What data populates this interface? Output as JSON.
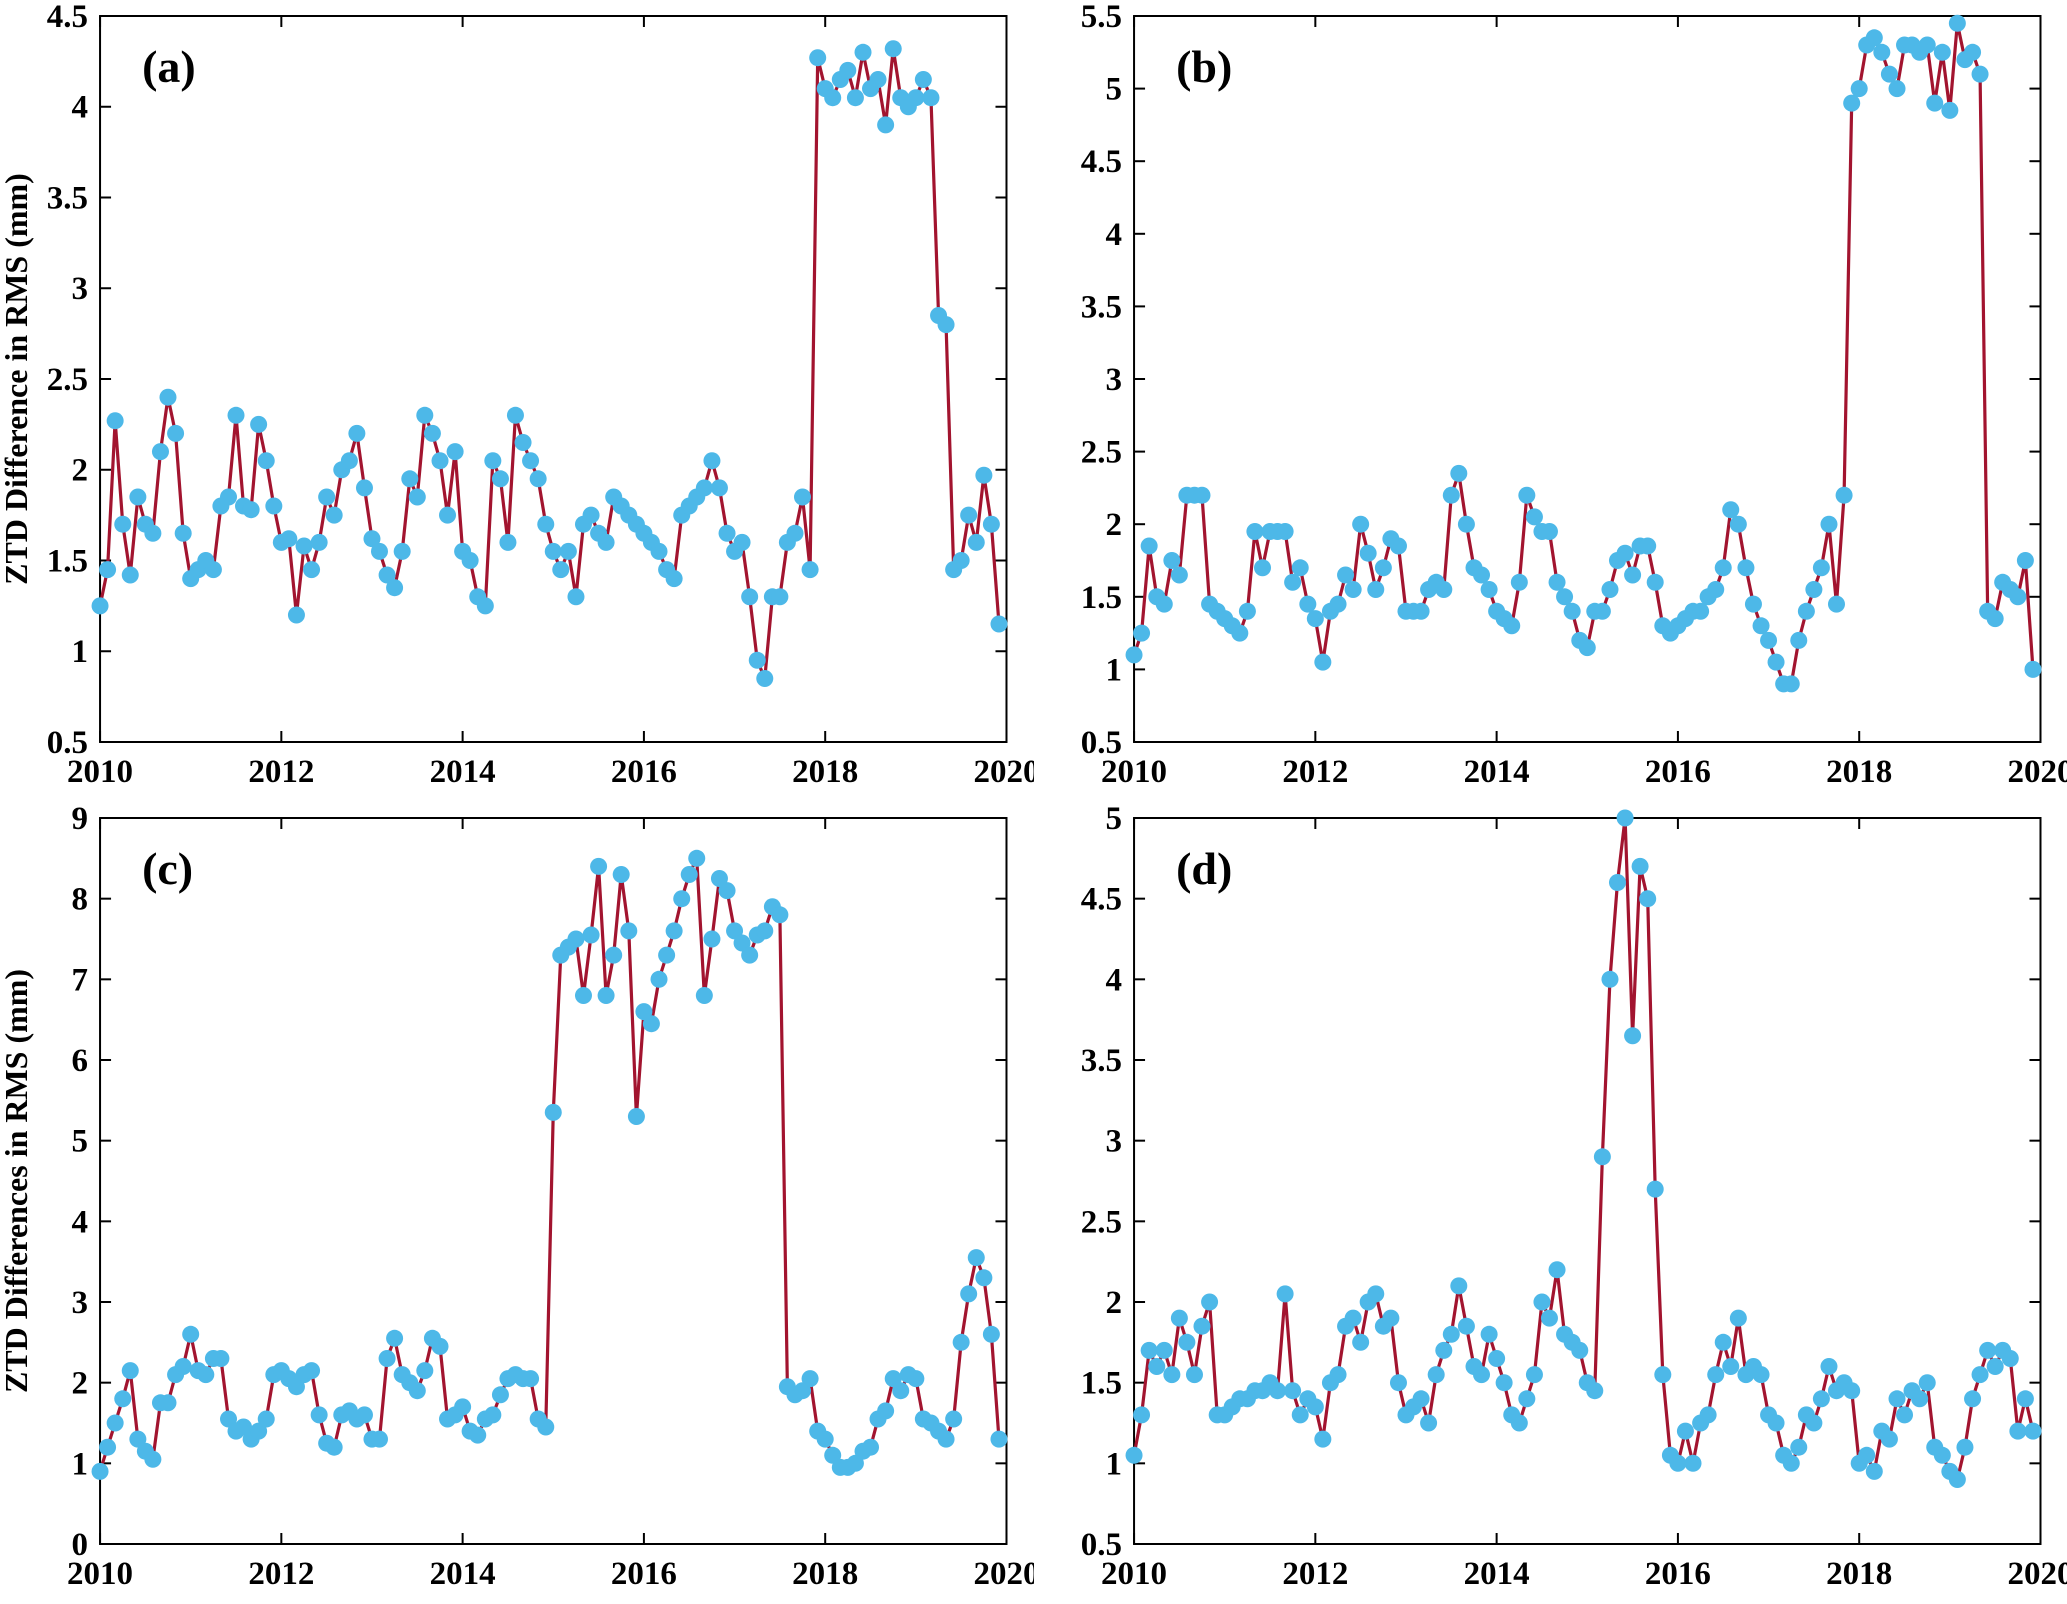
{
  "figure": {
    "background": "#ffffff",
    "line_color": "#A2142F",
    "marker_color": "#4DB8E8",
    "axis_color": "#000000",
    "grid": false,
    "legend": "none"
  },
  "chart_data": [
    {
      "type": "line",
      "panel_label": "(a)",
      "title": "",
      "xlabel": "",
      "ylabel": "ZTD Difference in RMS (mm)",
      "xlim": [
        2010,
        2020
      ],
      "ylim": [
        0.5,
        4.5
      ],
      "xticks": [
        2010,
        2012,
        2014,
        2016,
        2018,
        2020
      ],
      "yticks": [
        0.5,
        1,
        1.5,
        2,
        2.5,
        3,
        3.5,
        4,
        4.5
      ],
      "x_start": 2010,
      "x_interval": "monthly",
      "series_name": "ZTD RMS difference",
      "values": [
        1.25,
        1.45,
        2.27,
        1.7,
        1.42,
        1.85,
        1.7,
        1.65,
        2.1,
        2.4,
        2.2,
        1.65,
        1.4,
        1.45,
        1.5,
        1.45,
        1.8,
        1.85,
        2.3,
        1.8,
        1.78,
        2.25,
        2.05,
        1.8,
        1.6,
        1.62,
        1.2,
        1.58,
        1.45,
        1.6,
        1.85,
        1.75,
        2.0,
        2.05,
        2.2,
        1.9,
        1.62,
        1.55,
        1.42,
        1.35,
        1.55,
        1.95,
        1.85,
        2.3,
        2.2,
        2.05,
        1.75,
        2.1,
        1.55,
        1.5,
        1.3,
        1.25,
        2.05,
        1.95,
        1.6,
        2.3,
        2.15,
        2.05,
        1.95,
        1.7,
        1.55,
        1.45,
        1.55,
        1.3,
        1.7,
        1.75,
        1.65,
        1.6,
        1.85,
        1.8,
        1.75,
        1.7,
        1.65,
        1.6,
        1.55,
        1.45,
        1.4,
        1.75,
        1.8,
        1.85,
        1.9,
        2.05,
        1.9,
        1.65,
        1.55,
        1.6,
        1.3,
        0.95,
        0.85,
        1.3,
        1.3,
        1.6,
        1.65,
        1.85,
        1.45,
        4.27,
        4.1,
        4.05,
        4.15,
        4.2,
        4.05,
        4.3,
        4.1,
        4.15,
        3.9,
        4.32,
        4.05,
        4.0,
        4.05,
        4.15,
        4.05,
        2.85,
        2.8,
        1.45,
        1.5,
        1.75,
        1.6,
        1.97,
        1.7,
        1.15
      ]
    },
    {
      "type": "line",
      "panel_label": "(b)",
      "title": "",
      "xlabel": "",
      "ylabel": "",
      "xlim": [
        2010,
        2020
      ],
      "ylim": [
        0.5,
        5.5
      ],
      "xticks": [
        2010,
        2012,
        2014,
        2016,
        2018,
        2020
      ],
      "yticks": [
        0.5,
        1,
        1.5,
        2,
        2.5,
        3,
        3.5,
        4,
        4.5,
        5,
        5.5
      ],
      "x_start": 2010,
      "x_interval": "monthly",
      "series_name": "ZTD RMS difference",
      "values": [
        1.1,
        1.25,
        1.85,
        1.5,
        1.45,
        1.75,
        1.65,
        2.2,
        2.2,
        2.2,
        1.45,
        1.4,
        1.35,
        1.3,
        1.25,
        1.4,
        1.95,
        1.7,
        1.95,
        1.95,
        1.95,
        1.6,
        1.7,
        1.45,
        1.35,
        1.05,
        1.4,
        1.45,
        1.65,
        1.55,
        2.0,
        1.8,
        1.55,
        1.7,
        1.9,
        1.85,
        1.4,
        1.4,
        1.4,
        1.55,
        1.6,
        1.55,
        2.2,
        2.35,
        2.0,
        1.7,
        1.65,
        1.55,
        1.4,
        1.35,
        1.3,
        1.6,
        2.2,
        2.05,
        1.95,
        1.95,
        1.6,
        1.5,
        1.4,
        1.2,
        1.15,
        1.4,
        1.4,
        1.55,
        1.75,
        1.8,
        1.65,
        1.85,
        1.85,
        1.6,
        1.3,
        1.25,
        1.3,
        1.35,
        1.4,
        1.4,
        1.5,
        1.55,
        1.7,
        2.1,
        2.0,
        1.7,
        1.45,
        1.3,
        1.2,
        1.05,
        0.9,
        0.9,
        1.2,
        1.4,
        1.55,
        1.7,
        2.0,
        1.45,
        2.2,
        4.9,
        5.0,
        5.3,
        5.35,
        5.25,
        5.1,
        5.0,
        5.3,
        5.3,
        5.25,
        5.3,
        4.9,
        5.25,
        4.85,
        5.45,
        5.2,
        5.25,
        5.1,
        1.4,
        1.35,
        1.6,
        1.55,
        1.5,
        1.75,
        1.0
      ]
    },
    {
      "type": "line",
      "panel_label": "(c)",
      "title": "",
      "xlabel": "",
      "ylabel": "ZTD Differences in RMS (mm)",
      "xlim": [
        2010,
        2020
      ],
      "ylim": [
        0,
        9
      ],
      "xticks": [
        2010,
        2012,
        2014,
        2016,
        2018,
        2020
      ],
      "yticks": [
        0,
        1,
        2,
        3,
        4,
        5,
        6,
        7,
        8,
        9
      ],
      "x_start": 2010,
      "x_interval": "monthly",
      "series_name": "ZTD RMS difference",
      "values": [
        0.9,
        1.2,
        1.5,
        1.8,
        2.15,
        1.3,
        1.15,
        1.05,
        1.75,
        1.75,
        2.1,
        2.2,
        2.6,
        2.15,
        2.1,
        2.3,
        2.3,
        1.55,
        1.4,
        1.45,
        1.3,
        1.4,
        1.55,
        2.1,
        2.15,
        2.05,
        1.95,
        2.1,
        2.15,
        1.6,
        1.25,
        1.2,
        1.6,
        1.65,
        1.55,
        1.6,
        1.3,
        1.3,
        2.3,
        2.55,
        2.1,
        2.0,
        1.9,
        2.15,
        2.55,
        2.45,
        1.55,
        1.6,
        1.7,
        1.4,
        1.35,
        1.55,
        1.6,
        1.85,
        2.05,
        2.1,
        2.05,
        2.05,
        1.55,
        1.45,
        5.35,
        7.3,
        7.4,
        7.5,
        6.8,
        7.55,
        8.4,
        6.8,
        7.3,
        8.3,
        7.6,
        5.3,
        6.6,
        6.45,
        7.0,
        7.3,
        7.6,
        8.0,
        8.3,
        8.5,
        6.8,
        7.5,
        8.25,
        8.1,
        7.6,
        7.45,
        7.3,
        7.55,
        7.6,
        7.9,
        7.8,
        1.95,
        1.85,
        1.9,
        2.05,
        1.4,
        1.3,
        1.1,
        0.95,
        0.95,
        1.0,
        1.15,
        1.2,
        1.55,
        1.65,
        2.05,
        1.9,
        2.1,
        2.05,
        1.55,
        1.5,
        1.4,
        1.3,
        1.55,
        2.5,
        3.1,
        3.55,
        3.3,
        2.6,
        1.3
      ]
    },
    {
      "type": "line",
      "panel_label": "(d)",
      "title": "",
      "xlabel": "",
      "ylabel": "",
      "xlim": [
        2010,
        2020
      ],
      "ylim": [
        0.5,
        5
      ],
      "xticks": [
        2010,
        2012,
        2014,
        2016,
        2018,
        2020
      ],
      "yticks": [
        0.5,
        1,
        1.5,
        2,
        2.5,
        3,
        3.5,
        4,
        4.5,
        5
      ],
      "x_start": 2010,
      "x_interval": "monthly",
      "series_name": "ZTD RMS difference",
      "values": [
        1.05,
        1.3,
        1.7,
        1.6,
        1.7,
        1.55,
        1.9,
        1.75,
        1.55,
        1.85,
        2.0,
        1.3,
        1.3,
        1.35,
        1.4,
        1.4,
        1.45,
        1.45,
        1.5,
        1.45,
        2.05,
        1.45,
        1.3,
        1.4,
        1.35,
        1.15,
        1.5,
        1.55,
        1.85,
        1.9,
        1.75,
        2.0,
        2.05,
        1.85,
        1.9,
        1.5,
        1.3,
        1.35,
        1.4,
        1.25,
        1.55,
        1.7,
        1.8,
        2.1,
        1.85,
        1.6,
        1.55,
        1.8,
        1.65,
        1.5,
        1.3,
        1.25,
        1.4,
        1.55,
        2.0,
        1.9,
        2.2,
        1.8,
        1.75,
        1.7,
        1.5,
        1.45,
        2.9,
        4.0,
        4.6,
        5.0,
        3.65,
        4.7,
        4.5,
        2.7,
        1.55,
        1.05,
        1.0,
        1.2,
        1.0,
        1.25,
        1.3,
        1.55,
        1.75,
        1.6,
        1.9,
        1.55,
        1.6,
        1.55,
        1.3,
        1.25,
        1.05,
        1.0,
        1.1,
        1.3,
        1.25,
        1.4,
        1.6,
        1.45,
        1.5,
        1.45,
        1.0,
        1.05,
        0.95,
        1.2,
        1.15,
        1.4,
        1.3,
        1.45,
        1.4,
        1.5,
        1.1,
        1.05,
        0.95,
        0.9,
        1.1,
        1.4,
        1.55,
        1.7,
        1.6,
        1.7,
        1.65,
        1.2,
        1.4,
        1.2
      ]
    }
  ]
}
